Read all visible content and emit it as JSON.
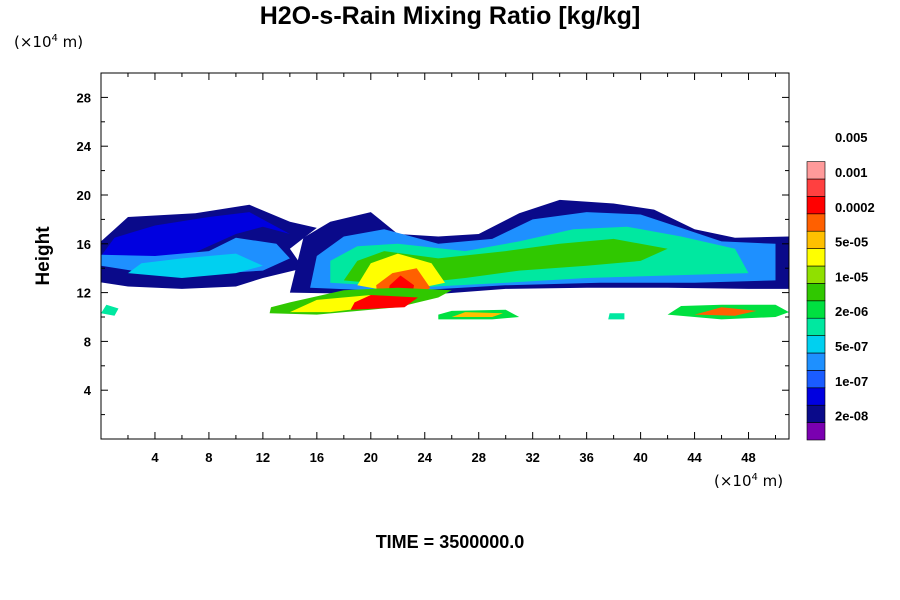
{
  "chart_data": {
    "type": "heatmap",
    "title": "H2O-s-Rain Mixing Ratio [kg/kg]",
    "ylabel": "Height",
    "x_unit": {
      "prefix": "(×10",
      "exp": "4",
      "suffix": " m)"
    },
    "y_unit": {
      "prefix": "(×10",
      "exp": "4",
      "suffix": " m)"
    },
    "xlim": [
      0,
      51
    ],
    "ylim": [
      0,
      30
    ],
    "x_ticks": [
      4,
      8,
      12,
      16,
      20,
      24,
      28,
      32,
      36,
      40,
      44,
      48
    ],
    "y_ticks": [
      4,
      8,
      12,
      16,
      20,
      24,
      28
    ],
    "colorbar": {
      "colors": [
        "#7a00b0",
        "#0a0a8a",
        "#0000e0",
        "#1a5cff",
        "#1e90ff",
        "#00d0f0",
        "#00e8a0",
        "#00e040",
        "#30c800",
        "#90e000",
        "#ffff00",
        "#ffc000",
        "#ff6000",
        "#ff0000",
        "#ff4040",
        "#ff9a9a"
      ],
      "labels": [
        "2e-08",
        "1e-07",
        "5e-07",
        "2e-06",
        "1e-05",
        "5e-05",
        "0.0002",
        "0.001",
        "0.005"
      ]
    },
    "regions": [
      {
        "level": 1,
        "points": [
          [
            -1,
            15.2
          ],
          [
            -1,
            13
          ],
          [
            2,
            12.5
          ],
          [
            6,
            12.3
          ],
          [
            10,
            12.5
          ],
          [
            12,
            13.2
          ],
          [
            15,
            14
          ],
          [
            14,
            15.6
          ],
          [
            16,
            17.3
          ],
          [
            14,
            17.8
          ],
          [
            11,
            19.2
          ],
          [
            7,
            18.5
          ],
          [
            2,
            18.2
          ],
          [
            1,
            17.2
          ]
        ]
      },
      {
        "level": 2,
        "points": [
          [
            0,
            15
          ],
          [
            3,
            14.6
          ],
          [
            7,
            15.3
          ],
          [
            10,
            16.8
          ],
          [
            12,
            17.4
          ],
          [
            14,
            16.8
          ],
          [
            11,
            18.6
          ],
          [
            8,
            18.2
          ],
          [
            4,
            17.5
          ],
          [
            1,
            16.5
          ]
        ]
      },
      {
        "level": 4,
        "points": [
          [
            0,
            14.2
          ],
          [
            4,
            13.5
          ],
          [
            9,
            13.6
          ],
          [
            12,
            13.8
          ],
          [
            14,
            14.8
          ],
          [
            13,
            16
          ],
          [
            10,
            16.5
          ],
          [
            8,
            15.4
          ],
          [
            4,
            15
          ],
          [
            0,
            15.1
          ]
        ]
      },
      {
        "level": 5,
        "points": [
          [
            2,
            13.6
          ],
          [
            6,
            13.2
          ],
          [
            10,
            13.6
          ],
          [
            12,
            14.2
          ],
          [
            10,
            15.2
          ],
          [
            6,
            14.8
          ],
          [
            3,
            14.4
          ]
        ]
      },
      {
        "level": 1,
        "points": [
          [
            14,
            12
          ],
          [
            24,
            11.8
          ],
          [
            30,
            12.3
          ],
          [
            36,
            12.4
          ],
          [
            42,
            12.4
          ],
          [
            48,
            12.3
          ],
          [
            51,
            12.3
          ],
          [
            51,
            16.6
          ],
          [
            47,
            16.5
          ],
          [
            44,
            17.2
          ],
          [
            41,
            18.8
          ],
          [
            38,
            19.3
          ],
          [
            34,
            19.6
          ],
          [
            31,
            18.5
          ],
          [
            28,
            16.8
          ],
          [
            25,
            16.6
          ],
          [
            22,
            16.8
          ],
          [
            20,
            18.6
          ],
          [
            17,
            17.8
          ],
          [
            15,
            16.5
          ]
        ]
      },
      {
        "level": 4,
        "points": [
          [
            15.5,
            12.4
          ],
          [
            22,
            12.1
          ],
          [
            30,
            12.6
          ],
          [
            37,
            12.8
          ],
          [
            44,
            12.8
          ],
          [
            50,
            13
          ],
          [
            50,
            16
          ],
          [
            46,
            16.2
          ],
          [
            43,
            17.3
          ],
          [
            40,
            18.4
          ],
          [
            36,
            18.6
          ],
          [
            32,
            18
          ],
          [
            29,
            16.4
          ],
          [
            25,
            16
          ],
          [
            21,
            17.2
          ],
          [
            18,
            16.6
          ],
          [
            16,
            15
          ]
        ]
      },
      {
        "level": 6,
        "points": [
          [
            17,
            12.8
          ],
          [
            23,
            12.4
          ],
          [
            30,
            12.8
          ],
          [
            36,
            13.2
          ],
          [
            42,
            13.4
          ],
          [
            48,
            13.6
          ],
          [
            47,
            15.6
          ],
          [
            43,
            16.6
          ],
          [
            39,
            17.4
          ],
          [
            35,
            17.2
          ],
          [
            31,
            16.2
          ],
          [
            27,
            15.4
          ],
          [
            22,
            16
          ],
          [
            19,
            15.8
          ],
          [
            17,
            14.6
          ]
        ]
      },
      {
        "level": 8,
        "points": [
          [
            18,
            13
          ],
          [
            22,
            12.6
          ],
          [
            27,
            13.2
          ],
          [
            31,
            13.8
          ],
          [
            36,
            14.2
          ],
          [
            40,
            14.6
          ],
          [
            42,
            15.6
          ],
          [
            38,
            16.4
          ],
          [
            34,
            16
          ],
          [
            30,
            15.4
          ],
          [
            25,
            14.8
          ],
          [
            21,
            15.4
          ],
          [
            19,
            14.6
          ]
        ]
      },
      {
        "level": 10,
        "points": [
          [
            19,
            12.6
          ],
          [
            22,
            12
          ],
          [
            25.5,
            12.8
          ],
          [
            24.5,
            14.4
          ],
          [
            22,
            15.2
          ],
          [
            20,
            14.4
          ]
        ]
      },
      {
        "level": 12,
        "points": [
          [
            20.5,
            11.6
          ],
          [
            23,
            11.2
          ],
          [
            24.4,
            12.4
          ],
          [
            23.4,
            14
          ],
          [
            21.6,
            13.6
          ],
          [
            20.4,
            12.6
          ]
        ]
      },
      {
        "level": 13,
        "points": [
          [
            21.2,
            11.4
          ],
          [
            23,
            11.4
          ],
          [
            23.2,
            12.6
          ],
          [
            22.2,
            13.4
          ],
          [
            21.4,
            12.6
          ]
        ]
      },
      {
        "level": 8,
        "points": [
          [
            12.5,
            10.3
          ],
          [
            16,
            10.2
          ],
          [
            20,
            10.6
          ],
          [
            22,
            10.8
          ],
          [
            25,
            11.6
          ],
          [
            26,
            12.2
          ],
          [
            22,
            12.4
          ],
          [
            18,
            12.2
          ],
          [
            14,
            11.2
          ],
          [
            12.6,
            10.8
          ]
        ]
      },
      {
        "level": 10,
        "points": [
          [
            14,
            10.4
          ],
          [
            17,
            10.4
          ],
          [
            20,
            10.8
          ],
          [
            23,
            11.2
          ],
          [
            20,
            11.8
          ],
          [
            16,
            11.4
          ]
        ]
      },
      {
        "level": 13,
        "points": [
          [
            18.5,
            10.6
          ],
          [
            22.5,
            10.8
          ],
          [
            23.5,
            11.6
          ],
          [
            20,
            11.8
          ],
          [
            18.8,
            11.2
          ]
        ]
      },
      {
        "level": 7,
        "points": [
          [
            25,
            9.8
          ],
          [
            29,
            9.8
          ],
          [
            31,
            10
          ],
          [
            30,
            10.6
          ],
          [
            26,
            10.5
          ],
          [
            25,
            10.2
          ]
        ]
      },
      {
        "level": 11,
        "points": [
          [
            26,
            10
          ],
          [
            29,
            10
          ],
          [
            29.8,
            10.3
          ],
          [
            27,
            10.4
          ]
        ]
      },
      {
        "level": 7,
        "points": [
          [
            42,
            10.2
          ],
          [
            46,
            9.8
          ],
          [
            50,
            10
          ],
          [
            51,
            10.4
          ],
          [
            50,
            11
          ],
          [
            46,
            11
          ],
          [
            43,
            10.9
          ]
        ]
      },
      {
        "level": 12,
        "points": [
          [
            44,
            10.2
          ],
          [
            47,
            10.1
          ],
          [
            48.6,
            10.5
          ],
          [
            46,
            10.8
          ]
        ]
      },
      {
        "level": 6,
        "points": [
          [
            0,
            10.3
          ],
          [
            1,
            10.1
          ],
          [
            1.3,
            10.7
          ],
          [
            0.4,
            11
          ]
        ]
      },
      {
        "level": 6,
        "points": [
          [
            37.6,
            9.8
          ],
          [
            38.8,
            9.8
          ],
          [
            38.8,
            10.3
          ],
          [
            37.7,
            10.3
          ]
        ]
      }
    ]
  },
  "time_label": "TIME = 3500000.0"
}
